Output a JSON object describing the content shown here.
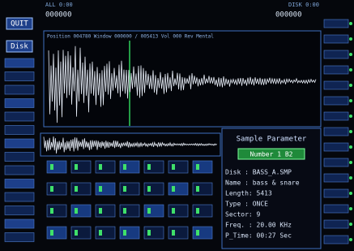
{
  "header": {
    "left_status": "ALL 0:00",
    "right_status": "DISK 0:00",
    "counter": "000000"
  },
  "buttons": [
    "QUIT",
    "Disk"
  ],
  "info_bar": "Position 004780  Window 000000 / 005413  Vol 000 Rev Mental",
  "panel": {
    "title": "Sample Parameter",
    "number": "Number 1 B2",
    "fields": [
      "Disk  : BASS_A.SMP",
      "Name  : bass & snare",
      "Length: 5413",
      "Type  : ONCE",
      "Sector: 9",
      "Freq. : 20.00 KHz",
      "P_Time: 00:27 Sec"
    ]
  }
}
